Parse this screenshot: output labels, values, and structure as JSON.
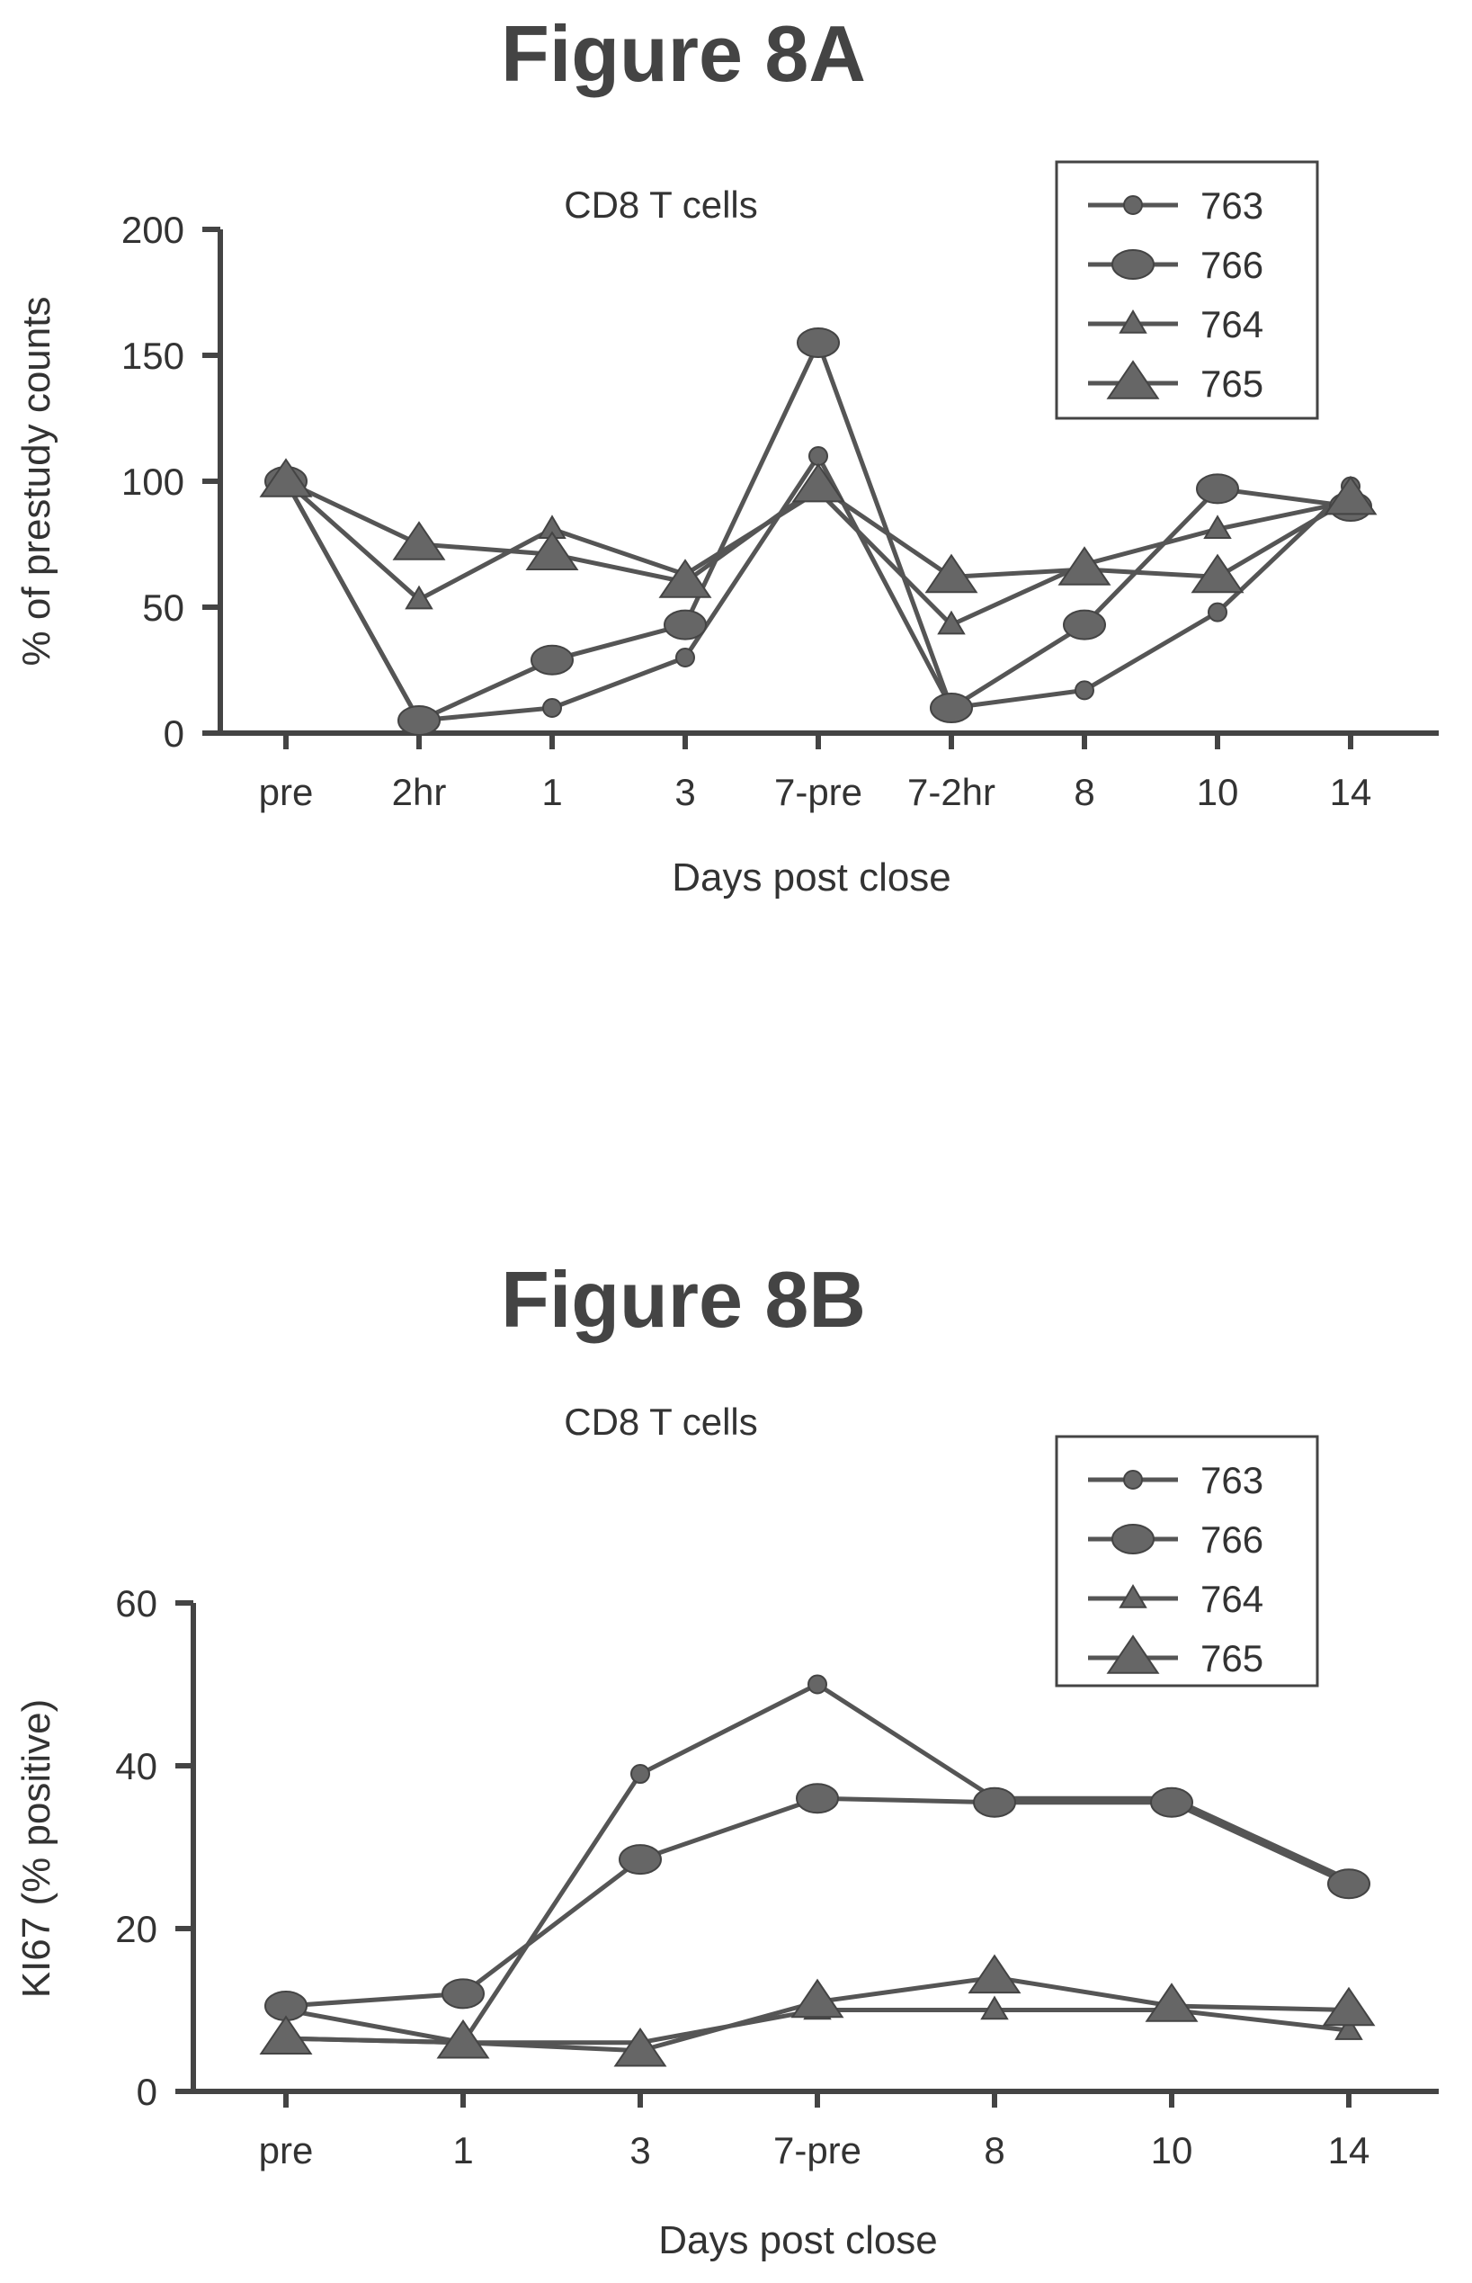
{
  "figures": [
    {
      "title": "Figure 8A"
    },
    {
      "title": "Figure 8B"
    }
  ],
  "chart_data": [
    {
      "type": "line",
      "title": "CD8 T cells",
      "xlabel": "Days post close",
      "ylabel": "% of prestudy counts",
      "categories": [
        "pre",
        "2hr",
        "1",
        "3",
        "7-pre",
        "7-2hr",
        "8",
        "10",
        "14"
      ],
      "ylim": [
        0,
        200
      ],
      "yticks": [
        "0",
        "50",
        "100",
        "150",
        "200"
      ],
      "legend_position": "top-right",
      "series": [
        {
          "name": "763",
          "marker": "small-circle",
          "values": [
            100,
            5,
            10,
            30,
            110,
            10,
            17,
            48,
            98
          ]
        },
        {
          "name": "766",
          "marker": "large-circle",
          "values": [
            100,
            5,
            29,
            43,
            155,
            10,
            43,
            97,
            90
          ]
        },
        {
          "name": "764",
          "marker": "small-triangle",
          "values": [
            100,
            53,
            81,
            63,
            96,
            43,
            67,
            81,
            92
          ]
        },
        {
          "name": "765",
          "marker": "large-triangle",
          "values": [
            100,
            75,
            71,
            60,
            98,
            62,
            65,
            62,
            93
          ]
        }
      ]
    },
    {
      "type": "line",
      "title": "CD8 T cells",
      "xlabel": "Days post close",
      "ylabel": "KI67 (% positive)",
      "categories": [
        "pre",
        "1",
        "3",
        "7-pre",
        "8",
        "10",
        "14"
      ],
      "ylim": [
        0,
        60
      ],
      "yticks": [
        "0",
        "20",
        "40",
        "60"
      ],
      "legend_position": "top-right",
      "series": [
        {
          "name": "763",
          "marker": "small-circle",
          "values": [
            10,
            6,
            39,
            50,
            36,
            36,
            26
          ]
        },
        {
          "name": "766",
          "marker": "large-circle",
          "values": [
            10.5,
            12,
            28.5,
            36,
            35.5,
            35.5,
            25.5
          ]
        },
        {
          "name": "764",
          "marker": "small-triangle",
          "values": [
            6.5,
            6,
            6,
            10,
            10,
            10,
            7.5
          ]
        },
        {
          "name": "765",
          "marker": "large-triangle",
          "values": [
            6.5,
            6,
            5,
            11,
            14,
            10.5,
            10
          ]
        }
      ]
    }
  ]
}
